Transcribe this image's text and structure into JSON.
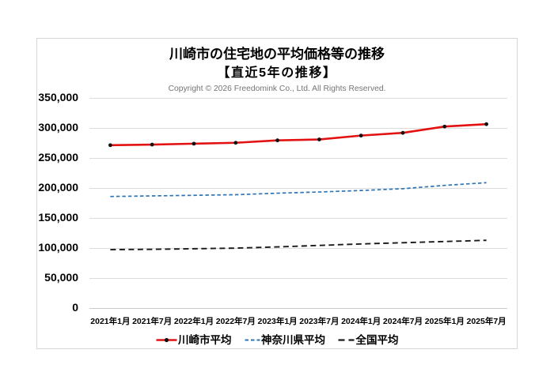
{
  "header": {
    "title": "川崎市の住宅地の平均価格等の推移",
    "subtitle": "【直近5年の推移】",
    "copyright": "Copyright © 2026 Freedomink Co., Ltd. All Rights Reserved."
  },
  "chart_data": {
    "type": "line",
    "title": "川崎市の住宅地の平均価格等の推移",
    "subtitle": "【直近5年の推移】",
    "categories": [
      "2021年1月",
      "2021年7月",
      "2022年1月",
      "2022年7月",
      "2023年1月",
      "2023年7月",
      "2024年1月",
      "2024年7月",
      "2025年1月",
      "2025年7月"
    ],
    "series": [
      {
        "name": "川崎市平均",
        "values": [
          272000,
          273000,
          274500,
          276000,
          280000,
          281500,
          288000,
          292500,
          303000,
          307000
        ],
        "color": "#e31212",
        "line_style": "solid",
        "marker": "circle",
        "marker_color": "#111111"
      },
      {
        "name": "神奈川県平均",
        "values": [
          186500,
          187500,
          188500,
          189500,
          192000,
          194000,
          196500,
          199500,
          205000,
          209500
        ],
        "color": "#2e75b6",
        "line_style": "dashed-short",
        "marker": "none"
      },
      {
        "name": "全国平均",
        "values": [
          98000,
          98500,
          99500,
          100500,
          102500,
          105000,
          107500,
          109500,
          111500,
          113500
        ],
        "color": "#1a1a1a",
        "line_style": "dashed-long",
        "marker": "none"
      }
    ],
    "ylim": [
      0,
      350000
    ],
    "ytick_step": 50000,
    "ytick_labels": [
      "0",
      "50,000",
      "100,000",
      "150,000",
      "200,000",
      "250,000",
      "300,000",
      "350,000"
    ],
    "xlabel": "",
    "ylabel": "",
    "grid": true,
    "gridline_color": "#dcdcdc",
    "axis_line_color": "#c9c9c9",
    "legend_position": "bottom"
  }
}
